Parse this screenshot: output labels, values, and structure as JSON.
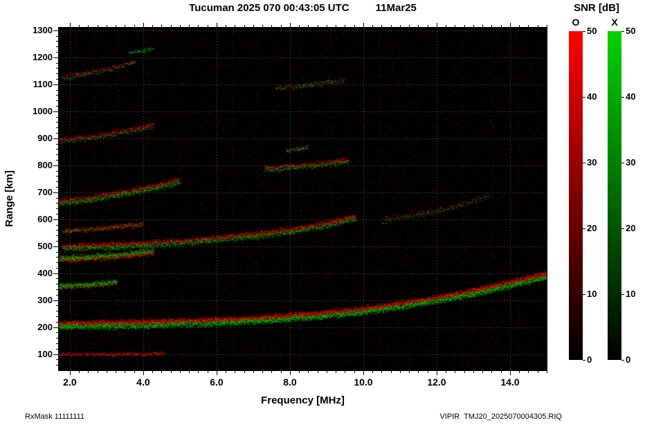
{
  "header": {
    "title_left": "Tucuman 2025 070 00:43:05 UTC",
    "title_right": "11Mar25"
  },
  "axes": {
    "x_label": "Frequency [MHz]",
    "y_label": "Range [km]"
  },
  "colorbar_panel": {
    "title": "SNR [dB]",
    "ticks": [
      0,
      10,
      20,
      30,
      40,
      50
    ],
    "bars": [
      {
        "label": "O",
        "color": "#ff0000"
      },
      {
        "label": "X",
        "color": "#00d400"
      }
    ]
  },
  "footer": {
    "left": "RxMask 11111111",
    "right": "VIPIR  TMJ20_2025070004305.RIQ"
  },
  "chart_data": {
    "type": "heatmap",
    "title": "Tucuman 2025 070 00:43:05 UTC 11Mar25",
    "xlabel": "Frequency [MHz]",
    "ylabel": "Range [km]",
    "units": {
      "x": "MHz",
      "y": "km",
      "z": "dB SNR"
    },
    "xlim": [
      1.7,
      15.0
    ],
    "ylim": [
      40,
      1310
    ],
    "x_major_ticks": [
      2,
      4,
      6,
      8,
      10,
      12,
      14
    ],
    "x_tick_labels": [
      "2.0",
      "4.0",
      "6.0",
      "8.0",
      "10.0",
      "12.0",
      "14.0"
    ],
    "x_minor_step": 0.25,
    "y_major_ticks": [
      100,
      200,
      300,
      400,
      500,
      600,
      700,
      800,
      900,
      1000,
      1100,
      1200,
      1300
    ],
    "y_minor_step": 20,
    "snr_range": [
      0,
      50
    ],
    "background": "#000000",
    "grid": {
      "color": "#aaaaaa",
      "style": "dotted",
      "x_at": [
        2,
        4,
        6,
        8,
        10,
        12,
        14
      ],
      "y_step": 100
    },
    "legend": {
      "O": "O-mode (red)",
      "X": "X-mode (green)"
    },
    "noise": {
      "red_dots": 26000,
      "green_dots": 4000
    },
    "rfi_columns": [
      {
        "f": 1.75,
        "s": 1.0
      },
      {
        "f": 1.9,
        "s": 0.7
      },
      {
        "f": 2.15,
        "s": 0.8
      },
      {
        "f": 2.65,
        "s": 0.6
      },
      {
        "f": 3.3,
        "s": 0.5
      },
      {
        "f": 4.15,
        "s": 0.9
      },
      {
        "f": 5.0,
        "s": 0.4
      },
      {
        "f": 6.45,
        "s": 0.7
      },
      {
        "f": 7.1,
        "s": 0.4
      },
      {
        "f": 8.3,
        "s": 0.8
      },
      {
        "f": 9.1,
        "s": 0.5
      },
      {
        "f": 10.45,
        "s": 0.7
      },
      {
        "f": 11.2,
        "s": 0.4
      },
      {
        "f": 11.9,
        "s": 0.6
      },
      {
        "f": 12.7,
        "s": 0.4
      },
      {
        "f": 13.5,
        "s": 0.6
      },
      {
        "f": 14.2,
        "s": 0.5
      }
    ],
    "traces": [
      {
        "name": "E-layer-100km",
        "points": [
          [
            1.7,
            100
          ],
          [
            3.2,
            100
          ],
          [
            4.6,
            103
          ]
        ],
        "o": 0.55,
        "x": 0,
        "density": 5,
        "spread": 1.4
      },
      {
        "name": "F-trace-first-hop",
        "points": [
          [
            1.7,
            214
          ],
          [
            2.6,
            216
          ],
          [
            4.0,
            219
          ],
          [
            6.0,
            227
          ],
          [
            7.5,
            238
          ],
          [
            9.0,
            254
          ],
          [
            10.0,
            268
          ],
          [
            11.0,
            288
          ],
          [
            12.0,
            310
          ],
          [
            13.0,
            336
          ],
          [
            14.0,
            366
          ],
          [
            15.0,
            400
          ]
        ],
        "o": 1.0,
        "x": 0.75,
        "xoff": -12,
        "density": 8,
        "spread": 2.2
      },
      {
        "name": "sporadic-350km",
        "points": [
          [
            1.7,
            349
          ],
          [
            2.5,
            354
          ],
          [
            3.3,
            366
          ]
        ],
        "o": 0.5,
        "x": 0.9,
        "xoff": 4,
        "density": 6,
        "spread": 2
      },
      {
        "name": "multiple-450km",
        "points": [
          [
            1.7,
            450
          ],
          [
            2.6,
            456
          ],
          [
            3.6,
            466
          ],
          [
            4.3,
            479
          ]
        ],
        "o": 0.8,
        "x": 0.9,
        "xoff": 6,
        "density": 6,
        "spread": 2.2
      },
      {
        "name": "F-second-hop",
        "points": [
          [
            1.8,
            500
          ],
          [
            3.0,
            506
          ],
          [
            5.0,
            520
          ],
          [
            7.0,
            546
          ],
          [
            8.0,
            562
          ],
          [
            9.0,
            586
          ],
          [
            9.8,
            612
          ]
        ],
        "o": 0.9,
        "x": 0.5,
        "xoff": -10,
        "density": 5,
        "spread": 2
      },
      {
        "name": "segment-560km",
        "points": [
          [
            1.8,
            556
          ],
          [
            2.8,
            566
          ],
          [
            4.0,
            583
          ]
        ],
        "o": 0.7,
        "x": 0.15,
        "density": 4,
        "spread": 1.8
      },
      {
        "name": "F-third-hop",
        "points": [
          [
            1.7,
            668
          ],
          [
            2.5,
            680
          ],
          [
            3.4,
            701
          ],
          [
            4.3,
            724
          ],
          [
            5.0,
            749
          ]
        ],
        "o": 0.85,
        "x": 0.6,
        "xoff": -10,
        "density": 5,
        "spread": 2
      },
      {
        "name": "segment-800km",
        "points": [
          [
            7.3,
            790
          ],
          [
            8.2,
            800
          ],
          [
            9.0,
            811
          ],
          [
            9.6,
            822
          ]
        ],
        "o": 0.7,
        "x": 0.5,
        "xoff": -8,
        "density": 4,
        "spread": 1.8
      },
      {
        "name": "F-fourth-hop",
        "points": [
          [
            1.7,
            895
          ],
          [
            2.4,
            905
          ],
          [
            3.1,
            918
          ],
          [
            3.8,
            936
          ],
          [
            4.3,
            953
          ]
        ],
        "o": 0.7,
        "x": 0.3,
        "xoff": -8,
        "density": 4,
        "spread": 1.8
      },
      {
        "name": "F-fifth-hop",
        "points": [
          [
            1.8,
            1128
          ],
          [
            2.5,
            1146
          ],
          [
            3.2,
            1166
          ],
          [
            3.8,
            1190
          ]
        ],
        "o": 0.5,
        "x": 0.35,
        "xoff": -8,
        "density": 3,
        "spread": 1.8
      },
      {
        "name": "green-dash-1230km",
        "points": [
          [
            3.6,
            1218
          ],
          [
            4.3,
            1233
          ]
        ],
        "o": 0.15,
        "x": 0.7,
        "density": 3,
        "spread": 1.5
      },
      {
        "name": "green-spot-860km",
        "points": [
          [
            7.9,
            856
          ],
          [
            8.5,
            866
          ]
        ],
        "o": 0.2,
        "x": 0.6,
        "density": 3,
        "spread": 1.5
      },
      {
        "name": "faint-1100km",
        "points": [
          [
            7.6,
            1085
          ],
          [
            8.6,
            1100
          ],
          [
            9.5,
            1118
          ]
        ],
        "o": 0.3,
        "x": 0.3,
        "density": 2,
        "spread": 2
      },
      {
        "name": "high-freq-second-hop",
        "points": [
          [
            10.5,
            600
          ],
          [
            11.5,
            622
          ],
          [
            12.5,
            652
          ],
          [
            13.4,
            692
          ]
        ],
        "o": 0.45,
        "x": 0.25,
        "xoff": -8,
        "density": 3,
        "spread": 2
      }
    ]
  }
}
